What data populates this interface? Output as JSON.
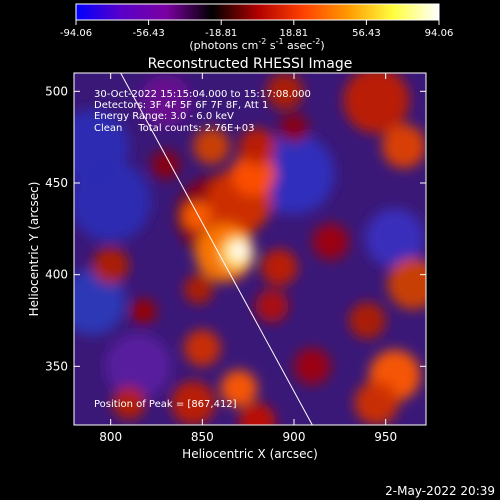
{
  "colorbar": {
    "tick_labels": [
      "-94.06",
      "-56.43",
      "-18.81",
      "18.81",
      "56.43",
      "94.06"
    ],
    "unit_label": "(photons cm",
    "unit_sup1": "-2",
    "unit_mid": " s",
    "unit_sup2": "-1",
    "unit_mid2": " asec",
    "unit_sup3": "-2",
    "unit_end": ")",
    "colors": [
      "#0000ff",
      "#5a00c8",
      "#7a00a0",
      "#000000",
      "#b00000",
      "#ff4000",
      "#ff9a00",
      "#ffff40",
      "#ffffff"
    ]
  },
  "chart_data": {
    "type": "heatmap",
    "title": "Reconstructed RHESSI Image",
    "xlabel": "Heliocentric X (arcsec)",
    "ylabel": "Heliocentric Y (arcsec)",
    "xlim": [
      780,
      972
    ],
    "ylim": [
      318,
      510
    ],
    "x_ticks": [
      800,
      850,
      900,
      950
    ],
    "y_ticks": [
      350,
      400,
      450,
      500
    ],
    "value_range": [
      -94.06,
      94.06
    ],
    "peak": {
      "x": 867,
      "y": 412
    },
    "limb_line": [
      [
        800,
        520
      ],
      [
        910,
        318
      ]
    ],
    "annotations": [
      "30-Oct-2022 15:15:04.000 to 15:17:08.000",
      "Detectors: 3F 4F 5F 6F 7F 8F, Att 1",
      "Energy Range: 3.0 - 6.0 keV",
      "Clean     Total counts: 2.76E+03"
    ],
    "peak_label": "Position of Peak = [867,412]"
  },
  "footer": {
    "timestamp": "2-May-2022 20:39"
  }
}
